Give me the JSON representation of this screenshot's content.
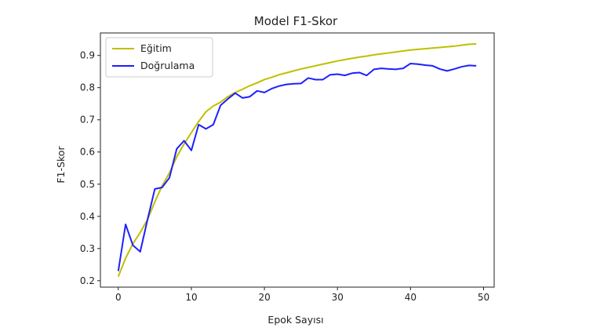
{
  "chart_data": {
    "type": "line",
    "title": "Model F1-Skor",
    "xlabel": "Epok Sayısı",
    "ylabel": "F1-Skor",
    "xlim": [
      -2.45,
      51.45
    ],
    "ylim": [
      0.18,
      0.97
    ],
    "xticks": [
      0,
      10,
      20,
      30,
      40,
      50
    ],
    "yticks": [
      0.2,
      0.3,
      0.4,
      0.5,
      0.6,
      0.7,
      0.8,
      0.9
    ],
    "ytick_labels": [
      "0.2",
      "0.3",
      "0.4",
      "0.5",
      "0.6",
      "0.7",
      "0.8",
      "0.9"
    ],
    "xtick_labels": [
      "0",
      "10",
      "20",
      "30",
      "40",
      "50"
    ],
    "grid": false,
    "legend_position": "upper-left",
    "x": [
      0,
      1,
      2,
      3,
      4,
      5,
      6,
      7,
      8,
      9,
      10,
      11,
      12,
      13,
      14,
      15,
      16,
      17,
      18,
      19,
      20,
      21,
      22,
      23,
      24,
      25,
      26,
      27,
      28,
      29,
      30,
      31,
      32,
      33,
      34,
      35,
      36,
      37,
      38,
      39,
      40,
      41,
      42,
      43,
      44,
      45,
      46,
      47,
      48,
      49
    ],
    "series": [
      {
        "name": "Eğitim",
        "color": "#bfbf00",
        "values": [
          0.213,
          0.27,
          0.315,
          0.35,
          0.39,
          0.445,
          0.495,
          0.535,
          0.585,
          0.625,
          0.66,
          0.695,
          0.725,
          0.743,
          0.755,
          0.772,
          0.785,
          0.795,
          0.806,
          0.815,
          0.825,
          0.832,
          0.84,
          0.846,
          0.852,
          0.858,
          0.863,
          0.868,
          0.873,
          0.878,
          0.883,
          0.887,
          0.891,
          0.895,
          0.898,
          0.902,
          0.905,
          0.908,
          0.911,
          0.914,
          0.917,
          0.919,
          0.921,
          0.923,
          0.925,
          0.927,
          0.929,
          0.932,
          0.935,
          0.936
        ]
      },
      {
        "name": "Doğrulama",
        "color": "#1f1fff",
        "values": [
          0.23,
          0.375,
          0.31,
          0.29,
          0.39,
          0.485,
          0.49,
          0.52,
          0.61,
          0.635,
          0.605,
          0.685,
          0.672,
          0.685,
          0.745,
          0.765,
          0.783,
          0.768,
          0.772,
          0.79,
          0.785,
          0.797,
          0.805,
          0.81,
          0.812,
          0.813,
          0.83,
          0.825,
          0.825,
          0.84,
          0.842,
          0.838,
          0.845,
          0.847,
          0.838,
          0.857,
          0.86,
          0.858,
          0.857,
          0.86,
          0.875,
          0.873,
          0.87,
          0.868,
          0.858,
          0.852,
          0.858,
          0.865,
          0.869,
          0.868
        ]
      }
    ]
  }
}
